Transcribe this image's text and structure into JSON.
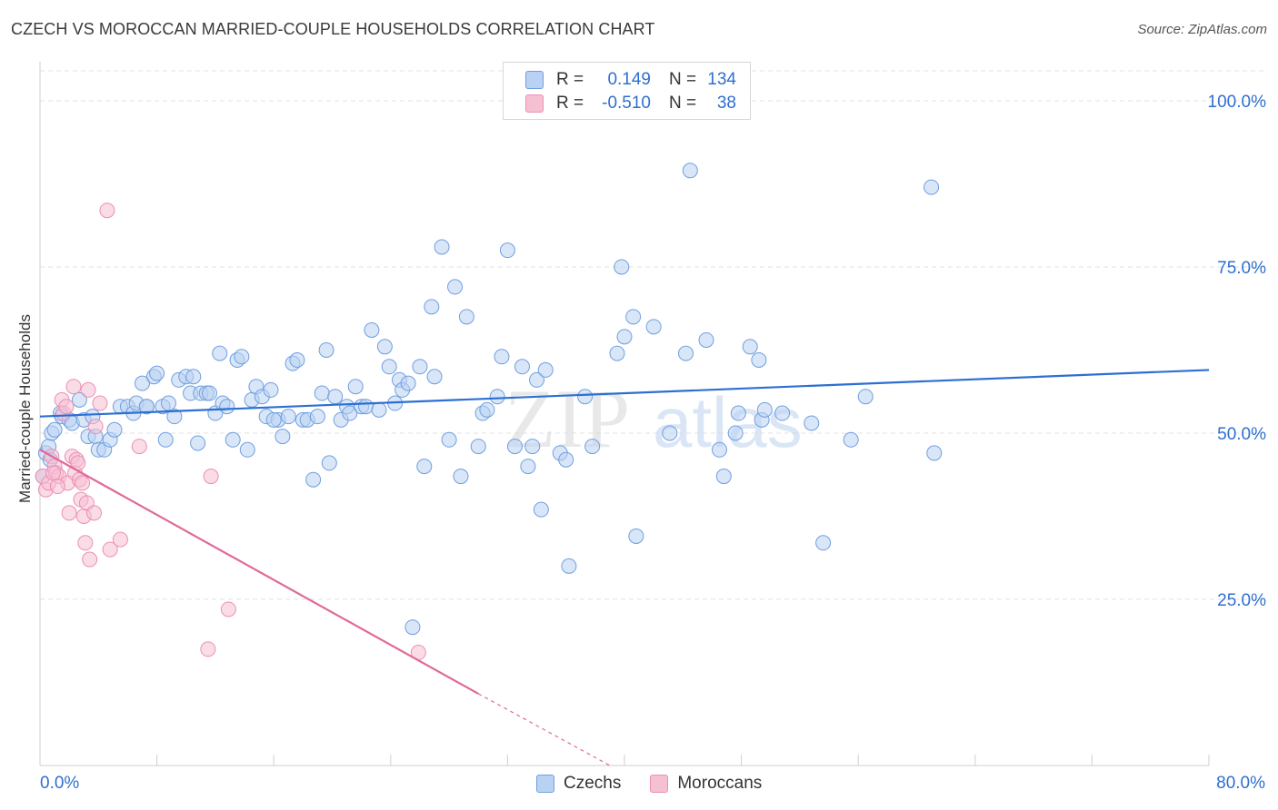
{
  "title": "CZECH VS MOROCCAN MARRIED-COUPLE HOUSEHOLDS CORRELATION CHART",
  "source": "Source: ZipAtlas.com",
  "colors": {
    "blue": "#2d6fd2",
    "blue_fill": "#b9d2f3",
    "blue_stroke": "#6f9fe0",
    "pink": "#e0699a",
    "pink_fill": "#f6c0d3",
    "pink_stroke": "#ec8fb1",
    "grid": "#e2e2e2",
    "axis_text": "#2f6fd0"
  },
  "legend_top": {
    "rows": [
      {
        "r_label": "R =",
        "r_value": "0.149",
        "n_label": "N =",
        "n_value": "134"
      },
      {
        "r_label": "R =",
        "r_value": "-0.510",
        "n_label": "N =",
        "n_value": "38"
      }
    ]
  },
  "legend_bottom": [
    "Czechs",
    "Moroccans"
  ],
  "watermark": {
    "zip": "ZIP",
    "atlas": "atlas"
  },
  "chart_data": {
    "type": "scatter",
    "xlabel": "",
    "ylabel": "Married-couple Households",
    "xlim": [
      0,
      80
    ],
    "ylim": [
      0,
      104.5
    ],
    "x_tick_labels": {
      "min": "0.0%",
      "max": "80.0%"
    },
    "y_ticks": [
      25,
      50,
      75,
      100
    ],
    "y_tick_labels": [
      "25.0%",
      "50.0%",
      "75.0%",
      "100.0%"
    ],
    "series": [
      {
        "name": "Czechs",
        "r": 0.149,
        "n": 134,
        "trend": {
          "x0": 0,
          "y0": 52.5,
          "x1": 80,
          "y1": 59.5
        },
        "points": [
          [
            0.2,
            43.5
          ],
          [
            0.4,
            47.0
          ],
          [
            0.6,
            48.0
          ],
          [
            0.7,
            46.0
          ],
          [
            0.8,
            50.0
          ],
          [
            1.0,
            50.5
          ],
          [
            1.4,
            53.0
          ],
          [
            1.5,
            52.5
          ],
          [
            2.0,
            52.0
          ],
          [
            2.2,
            51.5
          ],
          [
            2.7,
            55.0
          ],
          [
            3.0,
            52.0
          ],
          [
            3.3,
            49.5
          ],
          [
            3.6,
            52.5
          ],
          [
            3.8,
            49.5
          ],
          [
            4.0,
            47.5
          ],
          [
            4.4,
            47.5
          ],
          [
            4.8,
            49.0
          ],
          [
            5.1,
            50.5
          ],
          [
            5.5,
            54.0
          ],
          [
            6.0,
            54.0
          ],
          [
            6.4,
            53.0
          ],
          [
            6.6,
            54.5
          ],
          [
            7.0,
            57.5
          ],
          [
            7.3,
            54.0
          ],
          [
            7.8,
            58.5
          ],
          [
            8.0,
            59.0
          ],
          [
            8.4,
            54.0
          ],
          [
            8.6,
            49.0
          ],
          [
            8.8,
            54.5
          ],
          [
            9.2,
            52.5
          ],
          [
            9.5,
            58.0
          ],
          [
            10.0,
            58.5
          ],
          [
            10.3,
            56.0
          ],
          [
            10.5,
            58.5
          ],
          [
            10.8,
            48.5
          ],
          [
            11.0,
            56.0
          ],
          [
            11.4,
            56.0
          ],
          [
            11.6,
            56.0
          ],
          [
            12.0,
            53.0
          ],
          [
            12.3,
            62.0
          ],
          [
            12.5,
            54.5
          ],
          [
            12.8,
            54.0
          ],
          [
            13.2,
            49.0
          ],
          [
            13.5,
            61.0
          ],
          [
            13.8,
            61.5
          ],
          [
            14.2,
            47.5
          ],
          [
            14.5,
            55.0
          ],
          [
            14.8,
            57.0
          ],
          [
            15.2,
            55.5
          ],
          [
            15.5,
            52.5
          ],
          [
            15.8,
            56.5
          ],
          [
            16.3,
            52.0
          ],
          [
            16.6,
            49.5
          ],
          [
            17.0,
            52.5
          ],
          [
            17.3,
            60.5
          ],
          [
            17.6,
            61.0
          ],
          [
            18.0,
            52.0
          ],
          [
            18.3,
            52.0
          ],
          [
            18.7,
            43.0
          ],
          [
            19.0,
            52.5
          ],
          [
            19.3,
            56.0
          ],
          [
            19.6,
            62.5
          ],
          [
            19.8,
            45.5
          ],
          [
            20.2,
            55.5
          ],
          [
            20.6,
            52.0
          ],
          [
            21.0,
            54.0
          ],
          [
            21.2,
            53.0
          ],
          [
            21.6,
            57.0
          ],
          [
            22.0,
            54.0
          ],
          [
            22.3,
            54.0
          ],
          [
            22.7,
            65.5
          ],
          [
            23.2,
            53.5
          ],
          [
            23.6,
            63.0
          ],
          [
            23.9,
            60.0
          ],
          [
            24.3,
            54.5
          ],
          [
            24.6,
            58.0
          ],
          [
            24.8,
            56.5
          ],
          [
            25.2,
            57.5
          ],
          [
            26.0,
            60.0
          ],
          [
            26.3,
            45.0
          ],
          [
            26.8,
            69.0
          ],
          [
            27.0,
            58.5
          ],
          [
            27.5,
            78.0
          ],
          [
            28.0,
            49.0
          ],
          [
            28.4,
            72.0
          ],
          [
            28.8,
            43.5
          ],
          [
            29.2,
            67.5
          ],
          [
            30.0,
            48.0
          ],
          [
            30.3,
            53.0
          ],
          [
            30.6,
            53.5
          ],
          [
            31.3,
            55.5
          ],
          [
            31.6,
            61.5
          ],
          [
            32.0,
            77.5
          ],
          [
            32.5,
            48.0
          ],
          [
            33.0,
            60.0
          ],
          [
            33.4,
            45.0
          ],
          [
            33.7,
            48.0
          ],
          [
            34.0,
            58.0
          ],
          [
            34.3,
            38.5
          ],
          [
            34.6,
            59.5
          ],
          [
            35.6,
            47.0
          ],
          [
            36.0,
            46.0
          ],
          [
            36.2,
            30.0
          ],
          [
            37.3,
            55.5
          ],
          [
            37.8,
            48.0
          ],
          [
            39.5,
            62.0
          ],
          [
            39.8,
            75.0
          ],
          [
            40.0,
            64.5
          ],
          [
            40.6,
            67.5
          ],
          [
            40.8,
            34.5
          ],
          [
            42.0,
            66.0
          ],
          [
            43.1,
            50.0
          ],
          [
            44.2,
            62.0
          ],
          [
            44.5,
            89.5
          ],
          [
            45.6,
            64.0
          ],
          [
            46.5,
            47.5
          ],
          [
            46.8,
            43.5
          ],
          [
            47.6,
            50.0
          ],
          [
            47.8,
            53.0
          ],
          [
            48.6,
            63.0
          ],
          [
            49.2,
            61.0
          ],
          [
            49.4,
            52.0
          ],
          [
            49.6,
            53.5
          ],
          [
            50.8,
            53.0
          ],
          [
            52.8,
            51.5
          ],
          [
            53.6,
            33.5
          ],
          [
            55.5,
            49.0
          ],
          [
            56.5,
            55.5
          ],
          [
            61.0,
            87.0
          ],
          [
            61.2,
            47.0
          ],
          [
            25.5,
            20.8
          ],
          [
            7.3,
            54.0
          ],
          [
            16.0,
            52.0
          ]
        ]
      },
      {
        "name": "Moroccans",
        "r": -0.51,
        "n": 38,
        "trend": {
          "x0": 0,
          "y0": 47.5,
          "x1": 30,
          "y1": 10.8
        },
        "trend_dashed": {
          "x0": 30,
          "y0": 10.8,
          "x1": 39,
          "y1": 0
        },
        "points": [
          [
            0.2,
            43.5
          ],
          [
            0.4,
            41.5
          ],
          [
            0.6,
            42.5
          ],
          [
            0.8,
            46.5
          ],
          [
            1.0,
            45.0
          ],
          [
            1.1,
            44.0
          ],
          [
            1.3,
            43.5
          ],
          [
            1.5,
            55.0
          ],
          [
            1.6,
            53.0
          ],
          [
            1.8,
            54.0
          ],
          [
            1.9,
            42.5
          ],
          [
            2.0,
            38.0
          ],
          [
            2.2,
            46.5
          ],
          [
            2.3,
            57.0
          ],
          [
            2.4,
            44.0
          ],
          [
            2.5,
            46.0
          ],
          [
            2.6,
            45.5
          ],
          [
            2.7,
            43.0
          ],
          [
            2.8,
            40.0
          ],
          [
            2.9,
            42.5
          ],
          [
            3.0,
            37.5
          ],
          [
            3.1,
            33.5
          ],
          [
            3.2,
            39.5
          ],
          [
            3.3,
            56.5
          ],
          [
            3.4,
            31.0
          ],
          [
            3.7,
            38.0
          ],
          [
            3.8,
            51.0
          ],
          [
            4.1,
            54.5
          ],
          [
            4.6,
            83.5
          ],
          [
            4.8,
            32.5
          ],
          [
            5.5,
            34.0
          ],
          [
            6.8,
            48.0
          ],
          [
            11.5,
            17.5
          ],
          [
            11.7,
            43.5
          ],
          [
            12.9,
            23.5
          ],
          [
            25.9,
            17.0
          ],
          [
            0.9,
            44.0
          ],
          [
            1.2,
            42.0
          ]
        ]
      }
    ]
  }
}
